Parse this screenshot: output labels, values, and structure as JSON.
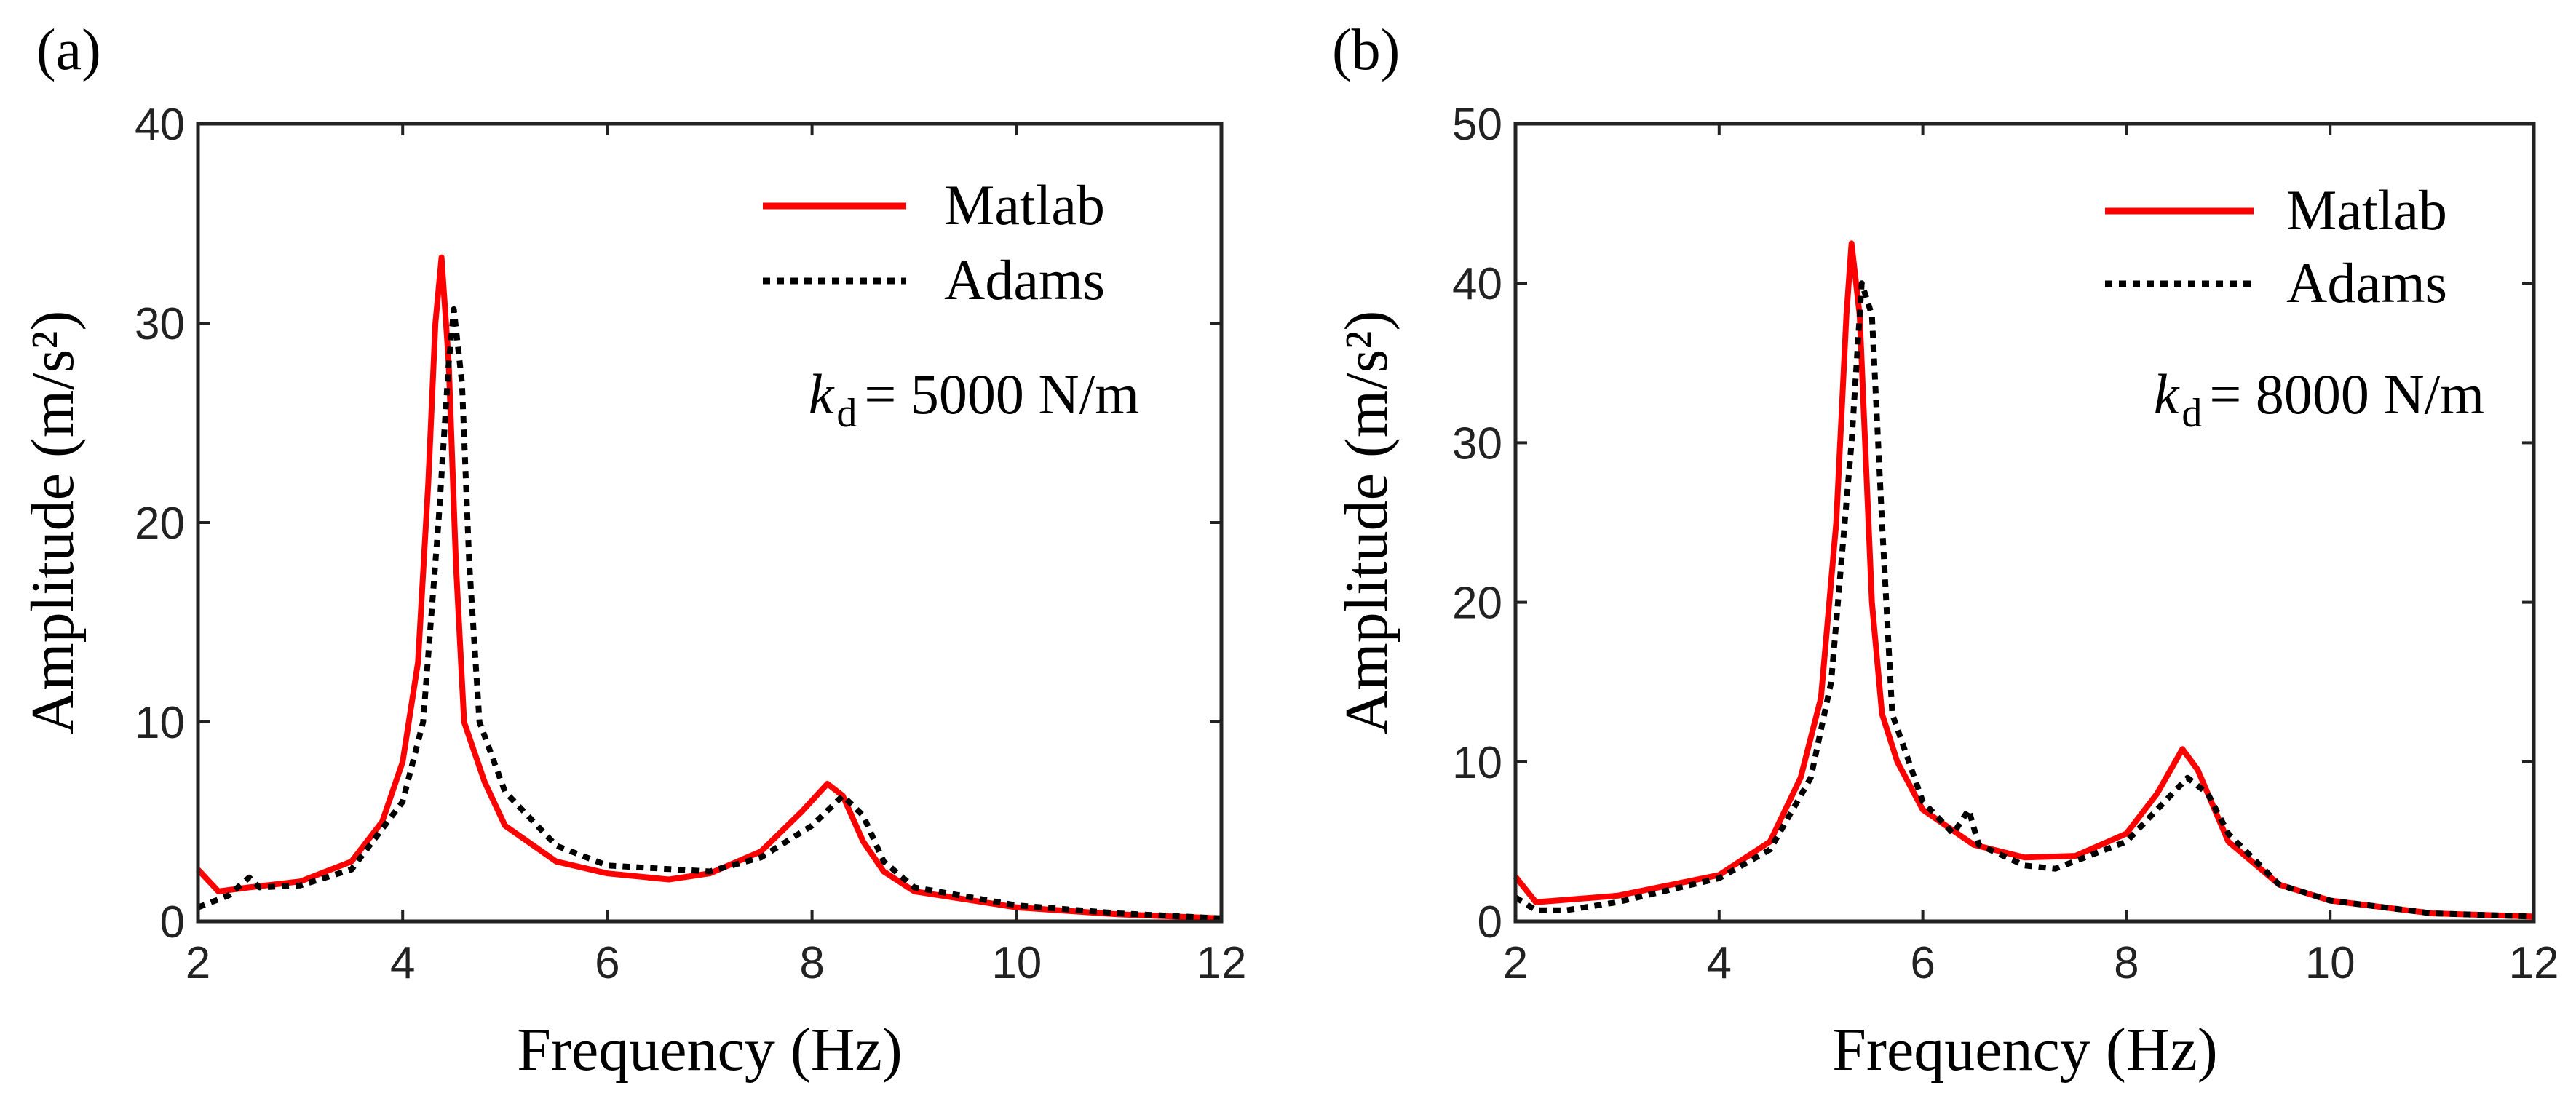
{
  "chart_data": [
    {
      "type": "line",
      "panel_label": "(a)",
      "xlabel": "Frequency (Hz)",
      "ylabel": "Amplitude (m/s²)",
      "xlim": [
        2,
        12
      ],
      "ylim": [
        0,
        40
      ],
      "xticks": [
        2,
        4,
        6,
        8,
        10,
        12
      ],
      "yticks": [
        0,
        10,
        20,
        30,
        40
      ],
      "grid": false,
      "legend_position": "top-right",
      "annotation": {
        "symbol": "k",
        "subscript": "d",
        "text": "= 5000 N/m"
      },
      "series": [
        {
          "name": "Matlab",
          "color": "#ff0000",
          "style": "solid",
          "x": [
            2,
            2.2,
            2.5,
            3,
            3.5,
            3.8,
            4.0,
            4.15,
            4.25,
            4.32,
            4.38,
            4.45,
            4.52,
            4.6,
            4.7,
            4.8,
            5.0,
            5.5,
            6,
            6.6,
            7,
            7.5,
            7.9,
            8.15,
            8.3,
            8.5,
            8.7,
            9,
            10,
            11,
            12
          ],
          "y": [
            2.6,
            1.5,
            1.7,
            2.0,
            3.0,
            5,
            8,
            13,
            22,
            30,
            33.3,
            28,
            18,
            10,
            8.5,
            7,
            4.8,
            3.0,
            2.4,
            2.1,
            2.4,
            3.5,
            5.5,
            6.9,
            6.3,
            4,
            2.5,
            1.5,
            0.7,
            0.35,
            0.15
          ]
        },
        {
          "name": "Adams",
          "color": "#000000",
          "style": "dotted",
          "x": [
            2,
            2.3,
            2.5,
            2.6,
            3,
            3.5,
            4.0,
            4.2,
            4.35,
            4.45,
            4.5,
            4.58,
            4.65,
            4.75,
            5.0,
            5.5,
            6,
            7,
            7.5,
            8,
            8.3,
            8.5,
            8.7,
            9,
            10,
            11,
            12
          ],
          "y": [
            0.7,
            1.3,
            2.2,
            1.7,
            1.8,
            2.6,
            6,
            10,
            20,
            28,
            30.7,
            27,
            18,
            10,
            6.5,
            3.8,
            2.8,
            2.5,
            3.2,
            4.8,
            6.3,
            5.3,
            3,
            1.7,
            0.8,
            0.4,
            0.15
          ]
        }
      ]
    },
    {
      "type": "line",
      "panel_label": "(b)",
      "xlabel": "Frequency (Hz)",
      "ylabel": "Amplitude (m/s²)",
      "xlim": [
        2,
        12
      ],
      "ylim": [
        0,
        50
      ],
      "xticks": [
        2,
        4,
        6,
        8,
        10,
        12
      ],
      "yticks": [
        0,
        10,
        20,
        30,
        40,
        50
      ],
      "grid": false,
      "legend_position": "top-right",
      "annotation": {
        "symbol": "k",
        "subscript": "d",
        "text": "= 8000 N/m"
      },
      "series": [
        {
          "name": "Matlab",
          "color": "#ff0000",
          "style": "solid",
          "x": [
            2,
            2.2,
            3,
            4,
            4.5,
            4.8,
            5.0,
            5.15,
            5.25,
            5.3,
            5.38,
            5.5,
            5.6,
            5.75,
            6,
            6.5,
            7,
            7.5,
            8,
            8.3,
            8.55,
            8.7,
            9,
            9.5,
            10,
            11,
            12
          ],
          "y": [
            2.8,
            1.2,
            1.6,
            2.9,
            5,
            9,
            14,
            25,
            38,
            42.5,
            38,
            20,
            13,
            10,
            7,
            4.8,
            4.0,
            4.1,
            5.5,
            8,
            10.8,
            9.5,
            5,
            2.3,
            1.3,
            0.5,
            0.3
          ]
        },
        {
          "name": "Adams",
          "color": "#000000",
          "style": "dotted",
          "x": [
            2,
            2.2,
            2.5,
            3,
            4,
            4.5,
            4.9,
            5.1,
            5.3,
            5.4,
            5.5,
            5.6,
            5.7,
            6,
            6.3,
            6.45,
            6.55,
            7,
            7.3,
            8,
            8.6,
            8.8,
            9,
            9.5,
            10,
            11,
            12
          ],
          "y": [
            1.5,
            0.7,
            0.7,
            1.2,
            2.7,
            4.5,
            9,
            15,
            30,
            40,
            38,
            25,
            13,
            7.5,
            5.5,
            7,
            4.8,
            3.5,
            3.3,
            5,
            9,
            8,
            5.5,
            2.3,
            1.3,
            0.5,
            0.3
          ]
        }
      ]
    }
  ]
}
